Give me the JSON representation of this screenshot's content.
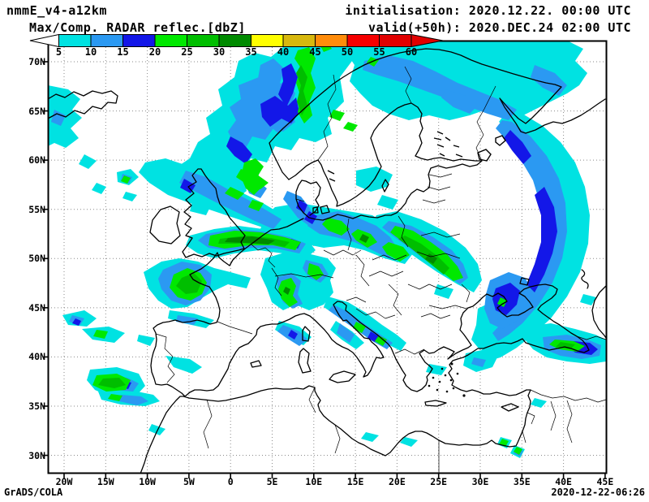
{
  "header": {
    "model": "nmmE_v4-a12km",
    "field": "Max/Comp. RADAR reflec.[dbZ]",
    "init": "initialisation: 2020.12.22. 00:00 UTC",
    "valid": "valid(+50h): 2020.DEC.24 02:00 UTC"
  },
  "colorbar": {
    "unit": "dbZ",
    "tick_values": [
      "5",
      "10",
      "15",
      "20",
      "25",
      "30",
      "35",
      "40",
      "45",
      "50",
      "55",
      "60"
    ],
    "segment_colors": [
      "#00E2E2",
      "#2B99F2",
      "#1317E8",
      "#00E800",
      "#00BE00",
      "#008A00",
      "#FFFF00",
      "#D8B80E",
      "#FF8C0A",
      "#F60000",
      "#E10000"
    ],
    "under_arrow_color": "#FFFFFF",
    "over_arrow_color": "#E10000"
  },
  "map": {
    "lat_labels": [
      "70N",
      "65N",
      "60N",
      "55N",
      "50N",
      "45N",
      "40N",
      "35N",
      "30N"
    ],
    "lon_labels": [
      "20W",
      "15W",
      "10W",
      "5W",
      "0",
      "5E",
      "10E",
      "15E",
      "20E",
      "25E",
      "30E",
      "35E",
      "40E",
      "45E"
    ],
    "coast_color": "#000000",
    "grid_color": "#8a8a8a",
    "echo_colors_on_map": [
      "#00E2E2",
      "#2B99F2",
      "#1317E8",
      "#00E800",
      "#00BE00",
      "#008A00"
    ],
    "echo_regions": [
      "Norwegian Sea and Norway coast (cyan/blue mass, green band along coast)",
      "Northern Scandinavia and Finland broad cyan field",
      "Long blue-cored arc over NW Russia curving south to the Sea of Azov",
      "Green band across Belarus/Ukraine",
      "Green band English Channel - Netherlands - N Germany",
      "Brittany blob with green core",
      "Alpine and Adriatic streaks",
      "Atlantic streaks west of Portugal",
      "Eastern Black Sea / Georgia coast blob",
      "Scattered specks: Iberia, Libya coast, Levant, NW Turkey"
    ]
  },
  "footer": {
    "credit": "GrADS/COLA",
    "timestamp": "2020-12-22-06:26"
  }
}
